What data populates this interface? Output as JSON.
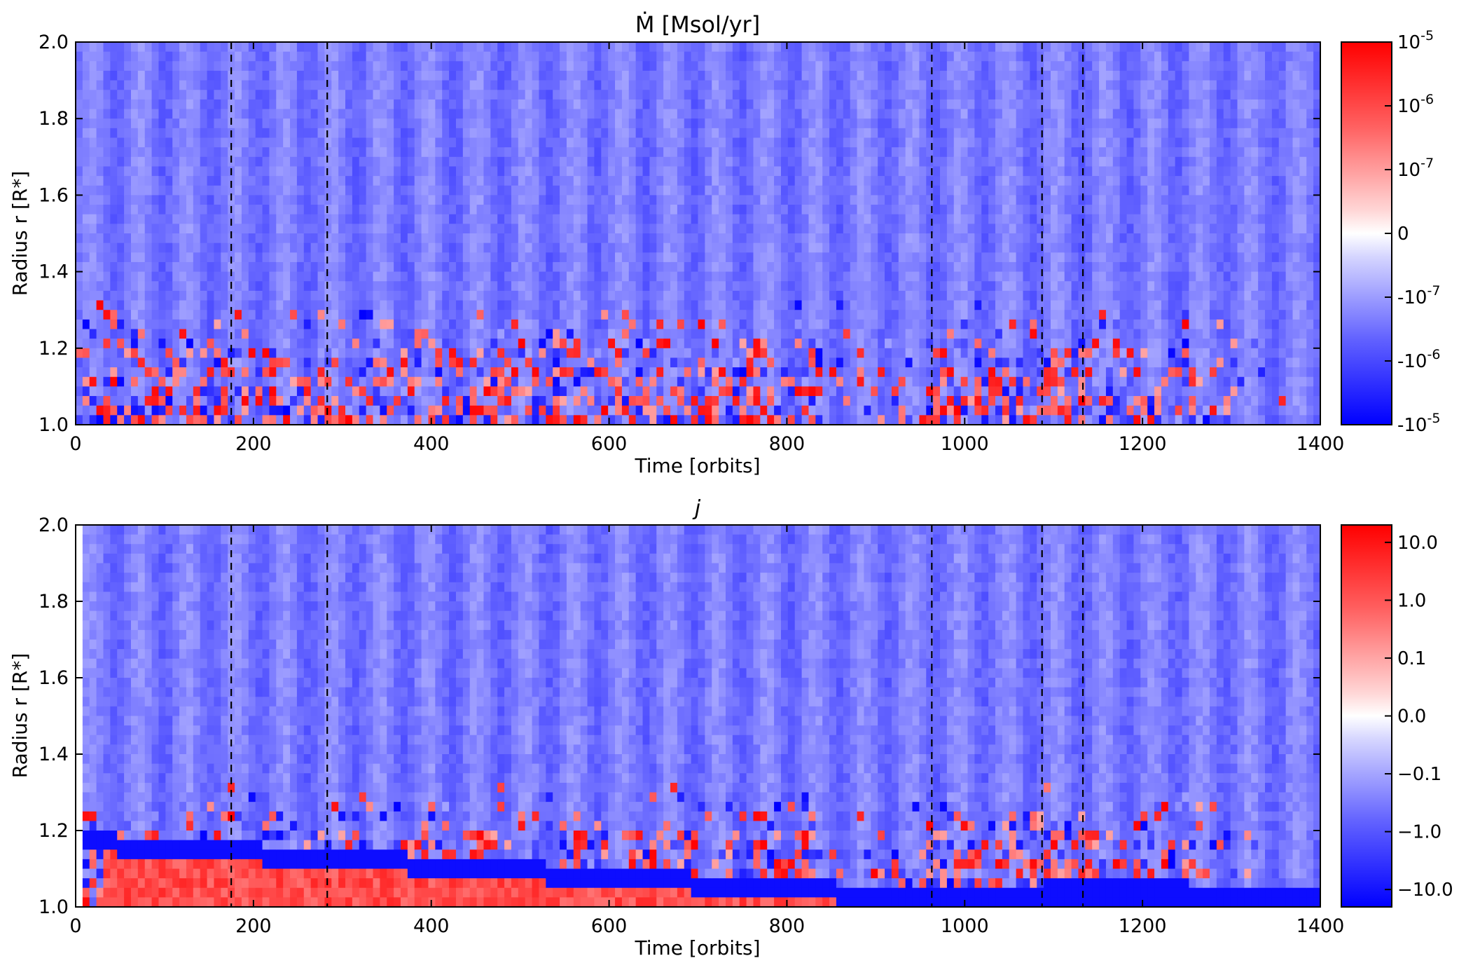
{
  "chart_data": [
    {
      "type": "heatmap",
      "title": "Ṁ [Msol/yr]",
      "xlabel": "Time [orbits]",
      "ylabel": "Radius r [R*]",
      "xlim": [
        0,
        1400
      ],
      "ylim": [
        1.0,
        2.0
      ],
      "x_ticks": [
        "0",
        "200",
        "400",
        "600",
        "800",
        "1000",
        "1200",
        "1400"
      ],
      "y_ticks": [
        "1.0",
        "1.2",
        "1.4",
        "1.6",
        "1.8",
        "2.0"
      ],
      "colorbar": {
        "scale": "symlog",
        "colormap": "bwr",
        "range": [
          -1e-05,
          1e-05
        ],
        "tick_values": [
          1e-05,
          1e-06,
          1e-07,
          0,
          -1e-07,
          -1e-06,
          -1e-05
        ],
        "tick_labels": [
          "10^-5",
          "10^-6",
          "10^-7",
          "0",
          "-10^-7",
          "-10^-6",
          "-10^-5"
        ]
      },
      "vlines": [
        175,
        283,
        963,
        1087,
        1133
      ],
      "vline_style": "dashed black",
      "description_of_field": "mostly blue background at large radius; strong red/blue mixing near r=1.0–1.3; quieter interval ~850–950 orbits; mixing fades after ~1250 orbits"
    },
    {
      "type": "heatmap",
      "title": "j",
      "xlabel": "Time [orbits]",
      "ylabel": "Radius r [R*]",
      "xlim": [
        0,
        1400
      ],
      "ylim": [
        1.0,
        2.0
      ],
      "x_ticks": [
        "0",
        "200",
        "400",
        "600",
        "800",
        "1000",
        "1200",
        "1400"
      ],
      "y_ticks": [
        "1.0",
        "1.2",
        "1.4",
        "1.6",
        "1.8",
        "2.0"
      ],
      "colorbar": {
        "scale": "symlog",
        "colormap": "bwr",
        "range": [
          -20,
          20
        ],
        "tick_values": [
          10,
          1,
          0.1,
          0,
          -0.1,
          -1,
          -10
        ],
        "tick_labels": [
          "10.0",
          "1.0",
          "0.1",
          "0.0",
          "−0.1",
          "−1.0",
          "−10.0"
        ]
      },
      "vlines": [
        175,
        283,
        963,
        1087,
        1133
      ],
      "vline_style": "dashed black",
      "description_of_field": "blue band descending from r≈1.17 near t=0 to r≈1.03; red strip beneath it until ~900 orbits; strong blue near r≈1.05 after ~1087 orbits"
    }
  ]
}
